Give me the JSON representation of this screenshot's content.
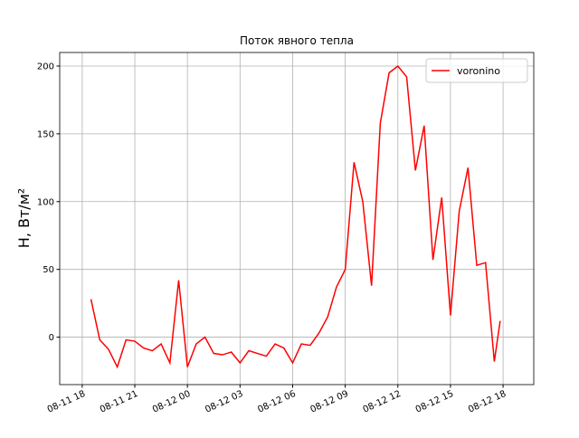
{
  "chart_data": {
    "type": "line",
    "title": "Поток явного тепла",
    "y_label": "H, Вт/м²",
    "x": [
      "08-11 18:30",
      "08-11 19:00",
      "08-11 19:30",
      "08-11 20:00",
      "08-11 20:30",
      "08-11 21:00",
      "08-11 21:30",
      "08-11 22:00",
      "08-11 22:30",
      "08-11 23:00",
      "08-11 23:30",
      "08-12 00:00",
      "08-12 00:30",
      "08-12 01:00",
      "08-12 01:30",
      "08-12 02:00",
      "08-12 02:30",
      "08-12 03:00",
      "08-12 03:30",
      "08-12 04:00",
      "08-12 04:30",
      "08-12 05:00",
      "08-12 05:30",
      "08-12 06:00",
      "08-12 06:30",
      "08-12 07:00",
      "08-12 07:30",
      "08-12 08:00",
      "08-12 08:30",
      "08-12 09:00",
      "08-12 09:30",
      "08-12 10:00",
      "08-12 10:30",
      "08-12 11:00",
      "08-12 11:30",
      "08-12 12:00",
      "08-12 12:30",
      "08-12 13:00",
      "08-12 13:30",
      "08-12 14:00",
      "08-12 14:30",
      "08-12 15:00",
      "08-12 15:30",
      "08-12 16:00",
      "08-12 16:30",
      "08-12 17:00",
      "08-12 17:30",
      "08-12 17:50"
    ],
    "series": [
      {
        "name": "voronino",
        "color": "#ff0000",
        "values": [
          28,
          -2,
          -9,
          -22,
          -2,
          -3,
          -8,
          -10,
          -5,
          -19,
          42,
          -22,
          -5,
          0,
          -12,
          -13,
          -11,
          -19,
          -10,
          -12,
          -14,
          -5,
          -8,
          -19,
          -5,
          -6,
          3,
          15,
          37,
          50,
          129,
          100,
          38,
          158,
          195,
          200,
          192,
          123,
          156,
          57,
          103,
          16,
          93,
          125,
          53,
          55,
          -18,
          12
        ]
      }
    ],
    "xlim": [
      "08-11 16:43",
      "08-12 19:45"
    ],
    "xticks": [
      "08-11 18",
      "08-11 21",
      "08-12 00",
      "08-12 03",
      "08-12 06",
      "08-12 09",
      "08-12 12",
      "08-12 15",
      "08-12 18"
    ],
    "ylim": [
      -35,
      210
    ],
    "yticks": [
      0,
      50,
      100,
      150,
      200
    ],
    "grid": true,
    "legend": "upper right"
  }
}
